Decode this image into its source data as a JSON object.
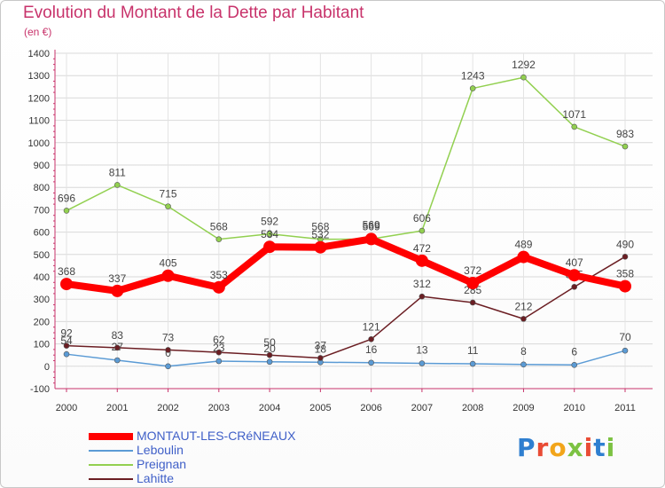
{
  "header": {
    "title": "Evolution du Montant de la Dette par Habitant",
    "unit": "(en €)"
  },
  "logo": {
    "text": "Proxiti",
    "letters": [
      "P",
      "r",
      "o",
      "x",
      "i",
      "t",
      "i"
    ],
    "colors": [
      "#2f7fd0",
      "#e94b35",
      "#f2a51a",
      "#7cc242",
      "#e94b35",
      "#2f7fd0",
      "#7cc242"
    ]
  },
  "chart_data": {
    "type": "line",
    "title": "Evolution du Montant de la Dette par Habitant",
    "ylabel": "(en €)",
    "xlabel": "",
    "ylim": [
      -100,
      1400
    ],
    "yticks": [
      -100,
      0,
      100,
      200,
      300,
      400,
      500,
      600,
      700,
      800,
      900,
      1000,
      1100,
      1200,
      1300,
      1400
    ],
    "x": [
      "2000",
      "2001",
      "2002",
      "2003",
      "2004",
      "2005",
      "2006",
      "2007",
      "2008",
      "2009",
      "2010",
      "2011"
    ],
    "grid": true,
    "legend_position": "bottom-left",
    "series": [
      {
        "name": "MONTAUT-LES-CRéNEAUX",
        "color": "#ff0000",
        "values": [
          368,
          337,
          405,
          353,
          534,
          532,
          569,
          472,
          372,
          489,
          407,
          358
        ]
      },
      {
        "name": "Leboulin",
        "color": "#5b9bd5",
        "values": [
          54,
          27,
          0,
          23,
          20,
          18,
          16,
          13,
          11,
          8,
          6,
          70
        ]
      },
      {
        "name": "Preignan",
        "color": "#92d050",
        "values": [
          696,
          811,
          715,
          568,
          592,
          568,
          569,
          606,
          1243,
          1292,
          1071,
          983
        ]
      },
      {
        "name": "Lahitte",
        "color": "#6b1e23",
        "values": [
          92,
          83,
          73,
          62,
          50,
          37,
          121,
          312,
          285,
          212,
          355,
          490
        ]
      }
    ]
  }
}
